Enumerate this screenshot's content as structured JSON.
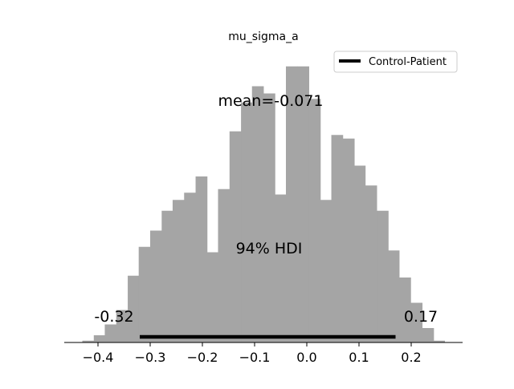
{
  "chart_data": {
    "type": "bar",
    "title": "mu_sigma_a",
    "xlabel": "",
    "ylabel": "",
    "xlim": [
      -0.46,
      0.3
    ],
    "ylim": [
      0,
      1.0
    ],
    "grid": false,
    "legend": {
      "position": "top-right",
      "entries": [
        "Control-Patient"
      ]
    },
    "colors": {
      "bars": "#a5a5a5",
      "hdi_line": "#000000",
      "axis": "#000000"
    },
    "x_ticks": [
      -0.4,
      -0.3,
      -0.2,
      -0.1,
      0.0,
      0.1,
      0.2
    ],
    "x_tick_labels": [
      "−0.4",
      "−0.3",
      "−0.2",
      "−0.1",
      "0.0",
      "0.1",
      "0.2"
    ],
    "bin_edges": [
      -0.43,
      -0.408,
      -0.387,
      -0.365,
      -0.343,
      -0.322,
      -0.3,
      -0.278,
      -0.257,
      -0.235,
      -0.213,
      -0.191,
      -0.17,
      -0.148,
      -0.126,
      -0.105,
      -0.083,
      -0.061,
      -0.04,
      -0.018,
      0.004,
      0.026,
      0.047,
      0.069,
      0.091,
      0.112,
      0.134,
      0.156,
      0.177,
      0.199,
      0.221,
      0.243,
      0.264
    ],
    "values": [
      0.01,
      0.04,
      0.1,
      0.18,
      0.37,
      0.53,
      0.62,
      0.73,
      0.79,
      0.83,
      0.92,
      0.5,
      0.85,
      1.17,
      1.33,
      1.42,
      1.38,
      0.82,
      1.53,
      1.53,
      1.35,
      0.79,
      1.15,
      1.13,
      0.98,
      0.87,
      0.73,
      0.51,
      0.36,
      0.22,
      0.08,
      0.01
    ],
    "annotations": {
      "mean": "mean=-0.071",
      "hdi": "94% HDI",
      "hdi_low": "-0.32",
      "hdi_high": "0.17"
    },
    "hdi_interval": [
      -0.32,
      0.17
    ]
  }
}
